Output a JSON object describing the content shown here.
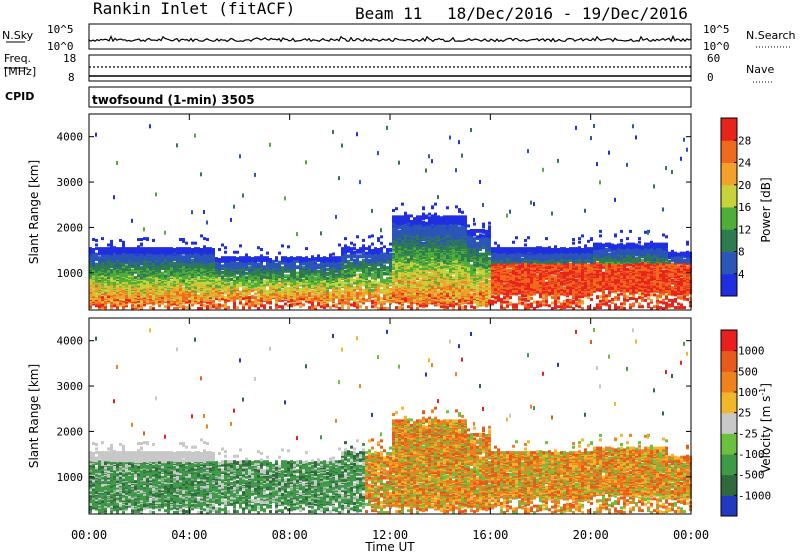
{
  "header": {
    "station": "Rankin Inlet (fitACF)",
    "beam": "Beam 11",
    "dates": "18/Dec/2016 - 19/Dec/2016"
  },
  "strip_nsky": {
    "left_label": "N.Sky",
    "left_ticks": [
      "10^5",
      "10^0"
    ],
    "right_ticks": [
      "10^5",
      "10^0"
    ],
    "right_label": "N.Search"
  },
  "strip_freq": {
    "label_top": "Freq.",
    "label_unit": "[MHz]",
    "left_ticks": [
      "18",
      "8"
    ],
    "right_ticks": [
      "60",
      "0"
    ],
    "right_label": "Nave"
  },
  "strip_cpid": {
    "label": "CPID",
    "text": "twofsound (1-min) 3505"
  },
  "axes": {
    "ylabel": "Slant Range [km]",
    "yticks": [
      "1000",
      "2000",
      "3000",
      "4000"
    ],
    "xticks": [
      "00:00",
      "04:00",
      "08:00",
      "12:00",
      "16:00",
      "20:00",
      "00:00"
    ],
    "xlabel": "Time UT"
  },
  "power_scale": {
    "label": "Power [dB]",
    "ticks": [
      "4",
      "8",
      "12",
      "16",
      "20",
      "24",
      "28"
    ]
  },
  "velocity_scale": {
    "label": "Velocity [m s",
    "label_sup": "-1",
    "label_end": "]",
    "ticks": [
      "1000",
      "500",
      "100",
      "25",
      "-25",
      "-100",
      "-500",
      "-1000"
    ]
  },
  "colors": {
    "power": [
      "#1f2fe0",
      "#2b55b8",
      "#2e7b4f",
      "#4fae3a",
      "#c8d23a",
      "#f2a22b",
      "#f06a1e",
      "#e8231c"
    ],
    "velocity": [
      "#2039c0",
      "#2e6a3c",
      "#3f9a48",
      "#6cc040",
      "#c8c8c8",
      "#f2b62b",
      "#f0821e",
      "#e85a1c",
      "#e8201c"
    ]
  },
  "chart_data": [
    {
      "type": "heatmap",
      "title": "Power",
      "x": [
        "00:00",
        "04:00",
        "08:00",
        "12:00",
        "16:00",
        "20:00",
        "00:00"
      ],
      "xlabel": "Time UT",
      "ylabel": "Slant Range [km]",
      "ylim": [
        180,
        4500
      ],
      "xlim_hours": [
        0,
        24
      ],
      "colorbar": {
        "label": "Power [dB]",
        "ticks": [
          4,
          8,
          12,
          16,
          20,
          24,
          28
        ]
      }
    },
    {
      "type": "heatmap",
      "title": "Velocity",
      "x": [
        "00:00",
        "04:00",
        "08:00",
        "12:00",
        "16:00",
        "20:00",
        "00:00"
      ],
      "xlabel": "Time UT",
      "ylabel": "Slant Range [km]",
      "ylim": [
        180,
        4500
      ],
      "xlim_hours": [
        0,
        24
      ],
      "colorbar": {
        "label": "Velocity [m s-1]",
        "ticks": [
          1000,
          500,
          100,
          25,
          -25,
          -100,
          -500,
          -1000
        ]
      }
    }
  ]
}
